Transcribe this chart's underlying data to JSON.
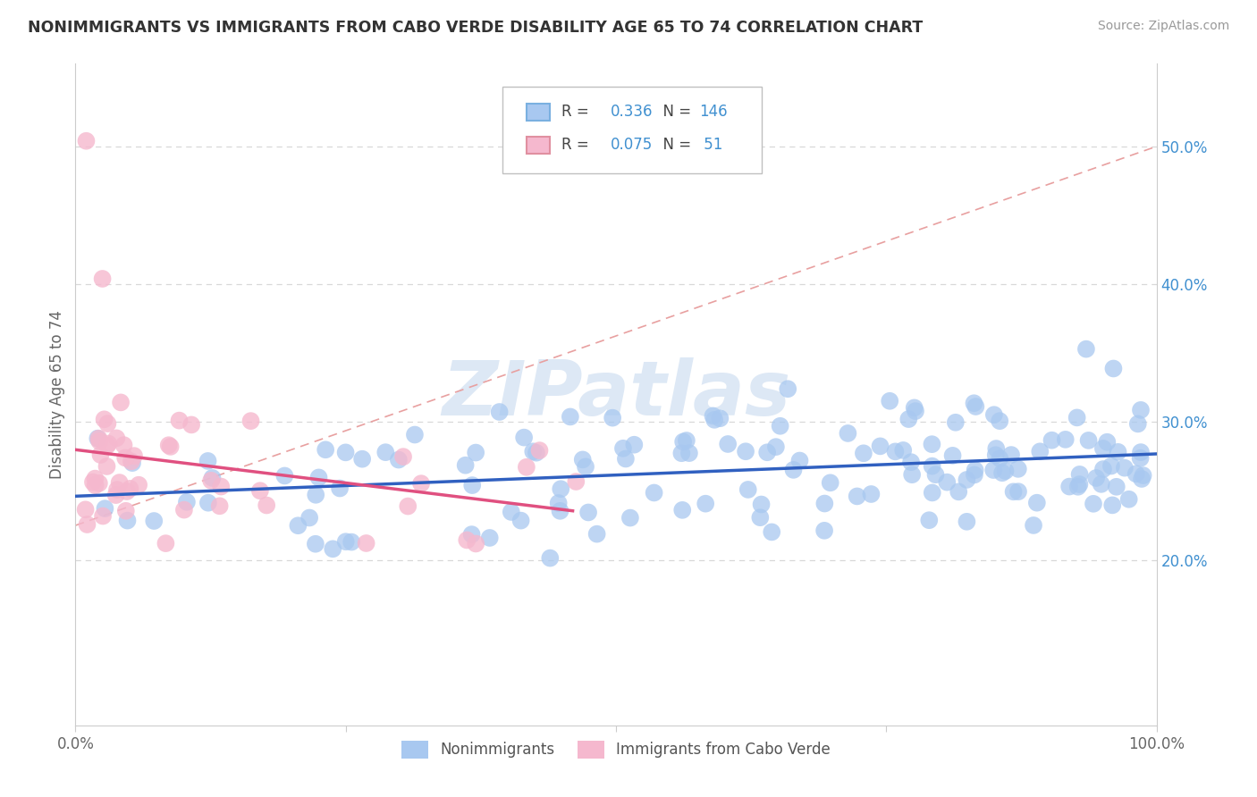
{
  "title": "NONIMMIGRANTS VS IMMIGRANTS FROM CABO VERDE DISABILITY AGE 65 TO 74 CORRELATION CHART",
  "source": "Source: ZipAtlas.com",
  "ylabel": "Disability Age 65 to 74",
  "xlim": [
    0.0,
    1.0
  ],
  "ylim": [
    0.08,
    0.56
  ],
  "y_ticks": [
    0.2,
    0.3,
    0.4,
    0.5
  ],
  "y_tick_labels": [
    "20.0%",
    "30.0%",
    "40.0%",
    "50.0%"
  ],
  "legend_nonimm": "Nonimmigrants",
  "legend_imm": "Immigrants from Cabo Verde",
  "R_nonimm": "0.336",
  "N_nonimm": "146",
  "R_imm": "0.075",
  "N_imm": "51",
  "nonimm_color": "#a8c8f0",
  "imm_color": "#f5b8ce",
  "nonimm_line_color": "#3060c0",
  "imm_line_color": "#e05080",
  "dash_line_color": "#e09090",
  "watermark_color": "#dde8f5",
  "tick_color": "#4090d0",
  "title_color": "#333333",
  "source_color": "#999999",
  "ylabel_color": "#666666",
  "grid_color": "#d8d8d8",
  "spine_color": "#cccccc"
}
